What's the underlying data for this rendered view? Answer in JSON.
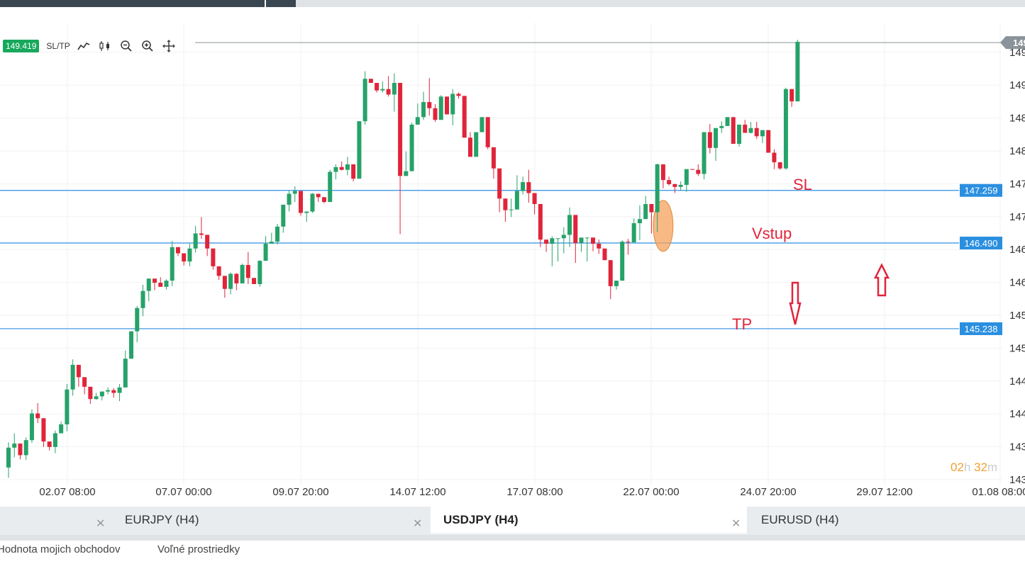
{
  "toolbar": {
    "current_price": "149.419",
    "sltp_label": "SL/TP",
    "icons": [
      "line-chart-icon",
      "candlestick-icon",
      "zoom-out-icon",
      "zoom-in-icon",
      "crosshair-icon"
    ]
  },
  "chart_data": {
    "type": "candlestick",
    "instrument": "USDJPY",
    "timeframe": "H4",
    "x_ticks": [
      "02.07 08:00",
      "07.07 00:00",
      "09.07 20:00",
      "14.07 12:00",
      "17.07 08:00",
      "22.07 00:00",
      "24.07 20:00",
      "29.07 12:00",
      "01.08 08:00"
    ],
    "y_ticks": [
      "143",
      "143",
      "144",
      "144",
      "145",
      "145",
      "146",
      "146",
      "147",
      "147",
      "148",
      "148",
      "149",
      "149"
    ],
    "ylim": [
      142.96,
      149.71
    ],
    "colors": {
      "up": "#26a269",
      "down": "#e0243a",
      "level_line": "#2b8fe0",
      "annotation": "#e0243a",
      "current_price": "#8a9399"
    },
    "candles": [
      [
        143.21,
        143.58,
        143.06,
        143.5
      ],
      [
        143.5,
        143.71,
        143.36,
        143.56
      ],
      [
        143.56,
        143.45,
        143.33,
        143.39
      ],
      [
        143.39,
        143.65,
        143.32,
        143.61
      ],
      [
        143.61,
        144.06,
        143.57,
        144.0
      ],
      [
        144.0,
        144.15,
        143.86,
        143.93
      ],
      [
        143.93,
        143.68,
        143.51,
        143.59
      ],
      [
        143.59,
        143.56,
        143.46,
        143.51
      ],
      [
        143.51,
        143.75,
        143.42,
        143.71
      ],
      [
        143.71,
        143.88,
        143.76,
        143.84
      ],
      [
        143.84,
        144.43,
        143.74,
        144.35
      ],
      [
        144.35,
        144.79,
        144.26,
        144.71
      ],
      [
        144.71,
        144.6,
        144.39,
        144.53
      ],
      [
        144.53,
        144.45,
        144.28,
        144.39
      ],
      [
        144.39,
        144.22,
        144.14,
        144.21
      ],
      [
        144.21,
        144.3,
        144.2,
        144.25
      ],
      [
        144.25,
        144.31,
        144.19,
        144.32
      ],
      [
        144.32,
        144.38,
        144.28,
        144.34
      ],
      [
        144.34,
        144.37,
        144.23,
        144.3
      ],
      [
        144.3,
        144.43,
        144.18,
        144.38
      ],
      [
        144.38,
        144.92,
        144.42,
        144.8
      ],
      [
        144.8,
        145.18,
        144.8,
        145.2
      ],
      [
        145.2,
        145.57,
        145.04,
        145.54
      ],
      [
        145.54,
        145.88,
        145.42,
        145.79
      ],
      [
        145.79,
        145.97,
        145.64,
        145.97
      ],
      [
        145.97,
        145.75,
        145.8,
        145.91
      ],
      [
        145.91,
        145.99,
        145.85,
        145.85
      ],
      [
        145.85,
        145.96,
        145.81,
        145.94
      ],
      [
        145.94,
        146.52,
        145.86,
        146.43
      ],
      [
        146.43,
        146.4,
        146.3,
        146.34
      ],
      [
        146.34,
        146.33,
        146.16,
        146.22
      ],
      [
        146.22,
        146.48,
        146.15,
        146.41
      ],
      [
        146.41,
        146.74,
        146.35,
        146.63
      ],
      [
        146.63,
        146.87,
        146.55,
        146.61
      ],
      [
        146.61,
        146.61,
        146.3,
        146.41
      ],
      [
        146.41,
        146.31,
        146.1,
        146.15
      ],
      [
        146.15,
        146.13,
        145.95,
        146.01
      ],
      [
        146.01,
        145.85,
        145.69,
        145.82
      ],
      [
        145.82,
        146.06,
        145.74,
        146.04
      ],
      [
        146.04,
        146.05,
        145.8,
        145.9
      ],
      [
        145.9,
        146.19,
        145.94,
        146.17
      ],
      [
        146.17,
        146.36,
        145.89,
        145.98
      ],
      [
        145.98,
        145.96,
        145.91,
        145.89
      ],
      [
        145.89,
        146.24,
        145.85,
        146.23
      ],
      [
        146.23,
        146.59,
        146.25,
        146.48
      ],
      [
        146.48,
        146.64,
        146.49,
        146.51
      ],
      [
        146.51,
        146.77,
        146.47,
        146.73
      ],
      [
        146.73,
        147.04,
        146.64,
        147.05
      ],
      [
        147.05,
        147.26,
        146.95,
        147.21
      ],
      [
        147.21,
        147.32,
        147.09,
        147.25
      ],
      [
        147.25,
        147.12,
        146.89,
        146.93
      ],
      [
        146.93,
        146.9,
        146.8,
        146.95
      ],
      [
        146.95,
        147.22,
        146.93,
        147.21
      ],
      [
        147.21,
        147.18,
        147.09,
        147.16
      ],
      [
        147.16,
        147.13,
        147.07,
        147.09
      ],
      [
        147.09,
        147.56,
        147.09,
        147.53
      ],
      [
        147.53,
        147.64,
        147.42,
        147.6
      ],
      [
        147.6,
        147.68,
        147.55,
        147.56
      ],
      [
        147.56,
        147.75,
        147.48,
        147.64
      ],
      [
        147.64,
        147.51,
        147.39,
        147.43
      ],
      [
        147.43,
        147.97,
        147.44,
        148.27
      ],
      [
        148.27,
        149.0,
        148.22,
        148.89
      ],
      [
        148.89,
        148.77,
        148.85,
        148.83
      ],
      [
        148.83,
        148.78,
        148.69,
        148.72
      ],
      [
        148.72,
        148.85,
        148.69,
        148.74
      ],
      [
        148.74,
        148.93,
        148.63,
        148.66
      ],
      [
        148.66,
        148.97,
        148.41,
        148.83
      ],
      [
        148.83,
        147.54,
        146.62,
        147.47
      ],
      [
        147.47,
        147.83,
        147.55,
        147.54
      ],
      [
        147.54,
        148.25,
        147.61,
        148.22
      ],
      [
        148.22,
        148.53,
        148.3,
        148.33
      ],
      [
        148.33,
        148.7,
        148.29,
        148.55
      ],
      [
        148.55,
        148.9,
        148.35,
        148.46
      ],
      [
        148.46,
        148.52,
        148.26,
        148.29
      ],
      [
        148.29,
        148.65,
        148.31,
        148.63
      ],
      [
        148.63,
        148.6,
        148.41,
        148.37
      ],
      [
        148.37,
        148.74,
        148.21,
        148.67
      ],
      [
        148.67,
        148.69,
        148.6,
        148.64
      ],
      [
        148.64,
        148.16,
        148.16,
        148.03
      ],
      [
        148.03,
        148.11,
        147.9,
        147.75
      ],
      [
        147.75,
        148.11,
        147.83,
        148.11
      ],
      [
        148.11,
        148.21,
        148.19,
        148.33
      ],
      [
        148.33,
        148.02,
        147.86,
        147.89
      ],
      [
        147.89,
        147.61,
        147.43,
        147.58
      ],
      [
        147.58,
        147.2,
        146.94,
        147.14
      ],
      [
        147.14,
        146.97,
        146.8,
        146.97
      ],
      [
        146.97,
        147.14,
        146.87,
        146.98
      ],
      [
        146.98,
        147.48,
        147.05,
        147.25
      ],
      [
        147.25,
        147.46,
        147.2,
        147.38
      ],
      [
        147.38,
        147.56,
        147.08,
        147.22
      ],
      [
        147.22,
        147.18,
        146.91,
        147.06
      ],
      [
        147.06,
        146.72,
        146.43,
        146.54
      ],
      [
        146.54,
        146.48,
        146.36,
        146.48
      ],
      [
        146.48,
        146.59,
        146.15,
        146.56
      ],
      [
        146.56,
        146.54,
        146.22,
        146.56
      ],
      [
        146.56,
        146.72,
        146.34,
        146.61
      ],
      [
        146.61,
        147.01,
        146.43,
        146.9
      ],
      [
        146.9,
        146.69,
        146.2,
        146.49
      ],
      [
        146.49,
        146.56,
        146.36,
        146.57
      ],
      [
        146.57,
        146.51,
        146.22,
        146.57
      ],
      [
        146.57,
        146.41,
        146.37,
        146.48
      ],
      [
        146.48,
        146.54,
        146.33,
        146.41
      ],
      [
        146.41,
        146.4,
        146.34,
        146.24
      ],
      [
        146.24,
        146.11,
        145.67,
        145.86
      ],
      [
        145.86,
        145.92,
        145.81,
        145.94
      ],
      [
        145.94,
        146.53,
        146.04,
        146.51
      ],
      [
        146.51,
        146.55,
        146.32,
        146.5
      ],
      [
        146.5,
        146.85,
        146.58,
        146.78
      ],
      [
        146.78,
        147.04,
        146.53,
        146.84
      ],
      [
        146.84,
        147.18,
        146.91,
        147.06
      ],
      [
        147.06,
        146.7,
        146.63,
        146.94
      ],
      [
        146.94,
        147.65,
        146.65,
        147.64
      ],
      [
        147.64,
        147.55,
        147.29,
        147.41
      ],
      [
        147.41,
        147.46,
        147.33,
        147.35
      ],
      [
        147.35,
        147.36,
        147.22,
        147.31
      ],
      [
        147.31,
        147.39,
        147.26,
        147.34
      ],
      [
        147.34,
        147.46,
        147.24,
        147.57
      ],
      [
        147.57,
        147.57,
        147.56,
        147.56
      ],
      [
        147.56,
        147.64,
        147.47,
        147.5
      ],
      [
        147.5,
        147.82,
        147.42,
        148.11
      ],
      [
        148.11,
        148.23,
        147.8,
        147.88
      ],
      [
        147.88,
        148.03,
        147.69,
        148.17
      ],
      [
        148.17,
        148.27,
        148.1,
        148.2
      ],
      [
        148.2,
        148.32,
        148.2,
        148.33
      ],
      [
        148.33,
        148.33,
        148.02,
        147.94
      ],
      [
        147.94,
        148.14,
        147.9,
        148.22
      ],
      [
        148.22,
        148.29,
        148.1,
        148.1
      ],
      [
        148.1,
        148.26,
        148.09,
        148.17
      ],
      [
        148.17,
        148.26,
        148.01,
        148.05
      ],
      [
        148.05,
        148.12,
        147.95,
        148.14
      ],
      [
        148.14,
        148.07,
        147.81,
        147.81
      ],
      [
        147.81,
        147.86,
        147.57,
        147.67
      ],
      [
        147.67,
        147.65,
        147.56,
        147.58
      ],
      [
        147.58,
        148.76,
        147.56,
        148.74
      ],
      [
        148.74,
        148.69,
        148.48,
        148.56
      ],
      [
        148.56,
        149.46,
        148.72,
        149.43
      ]
    ],
    "levels": [
      {
        "label": "147.259",
        "value": 147.259
      },
      {
        "label": "146.490",
        "value": 146.49
      },
      {
        "label": "145.238",
        "value": 145.238
      }
    ],
    "current_price_line": 149.419,
    "annotations": {
      "sl": "SL",
      "entry": "Vstup",
      "tp": "TP"
    }
  },
  "timer": {
    "hours": "02",
    "h_unit": "h",
    "minutes": "32",
    "m_unit": "m",
    "hours_color": "#f0a030",
    "unit_color": "#c8cdd1"
  },
  "tabs": [
    {
      "label": "",
      "active": false
    },
    {
      "label": "EURJPY (H4)",
      "active": false
    },
    {
      "label": "USDJPY (H4)",
      "active": true
    },
    {
      "label": "EURUSD (H4)",
      "active": false
    }
  ],
  "footer": {
    "trades_value_label": "Hodnota mojich obchodov",
    "free_funds_label": "Voľné prostriedky"
  }
}
